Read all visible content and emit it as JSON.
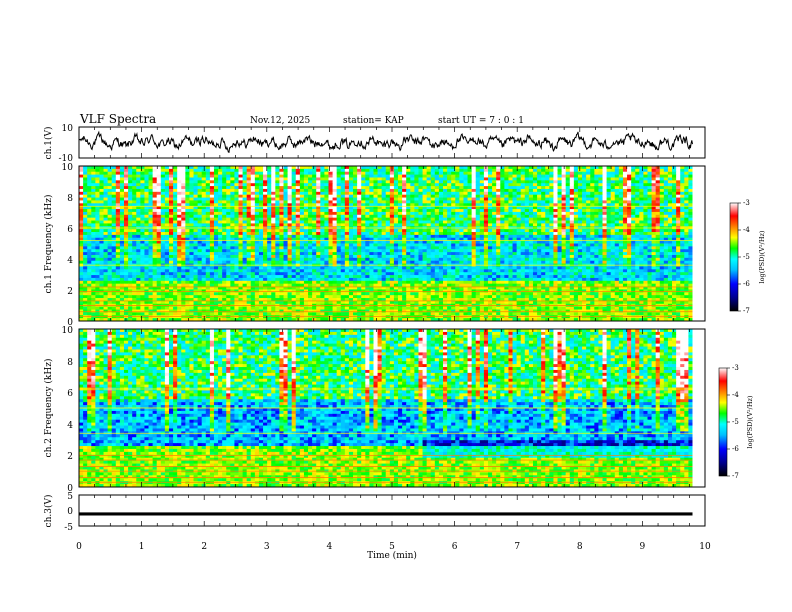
{
  "header": {
    "title": "VLF Spectra",
    "date": "Nov.12, 2025",
    "station": "station= KAP",
    "start_ut": "start UT =  7 : 0  : 1"
  },
  "chart_data": [
    {
      "type": "line",
      "title": "ch.1(V)",
      "xlabel": "Time (min)",
      "ylabel": "ch.1(V)",
      "xlim": [
        0,
        10
      ],
      "ylim": [
        -10,
        10
      ],
      "ytick_labels": [
        "10",
        "-10"
      ],
      "series": [
        {
          "name": "ch.1 waveform",
          "color": "#000000",
          "description": "noisy signal oscillating roughly between -5 and 5 V over 0 to 9.8 min"
        }
      ]
    },
    {
      "type": "heatmap",
      "title": "ch.1 Frequency (kHz)",
      "ylabel": "ch.1 Frequency (kHz)",
      "xlim": [
        0,
        9.8
      ],
      "ylim": [
        0,
        10
      ],
      "ytick_labels": [
        "0",
        "2",
        "4",
        "6",
        "8",
        "10"
      ],
      "colorbar": {
        "label": "log(PSD)(V²/Hz)",
        "range": [
          -7,
          -3
        ],
        "tick_labels": [
          "-3",
          "-4",
          "-5",
          "-6",
          "-7"
        ]
      }
    },
    {
      "type": "heatmap",
      "title": "ch.2 Frequency (kHz)",
      "ylabel": "ch.2 Frequency (kHz)",
      "xlim": [
        0,
        9.8
      ],
      "ylim": [
        0,
        10
      ],
      "ytick_labels": [
        "0",
        "2",
        "4",
        "6",
        "8",
        "10"
      ],
      "colorbar": {
        "label": "log(PSD)(V²/Hz)",
        "range": [
          -7,
          -3
        ],
        "tick_labels": [
          "-3",
          "-4",
          "-5",
          "-6",
          "-7"
        ]
      }
    },
    {
      "type": "line",
      "title": "ch.3(V)",
      "xlabel": "Time (min)",
      "ylabel": "ch.3(V)",
      "xlim": [
        0,
        10
      ],
      "ylim": [
        -5,
        5
      ],
      "ytick_labels": [
        "5",
        "0",
        "-5"
      ],
      "series": [
        {
          "name": "ch.3 waveform",
          "color": "#000000",
          "description": "thick constant band near -1 V"
        }
      ]
    }
  ],
  "time_axis": {
    "label": "Time (min)",
    "ticks": [
      0,
      1,
      2,
      3,
      4,
      5,
      6,
      7,
      8,
      9,
      10
    ],
    "tick_labels": [
      "0",
      "1",
      "2",
      "3",
      "4",
      "5",
      "6",
      "7",
      "8",
      "9",
      "10"
    ]
  },
  "colors": {
    "scale": [
      "#00008b",
      "#0000ff",
      "#00bfff",
      "#00ffff",
      "#00ff00",
      "#ffff00",
      "#ff8000",
      "#ff0000",
      "#ffffff"
    ]
  }
}
